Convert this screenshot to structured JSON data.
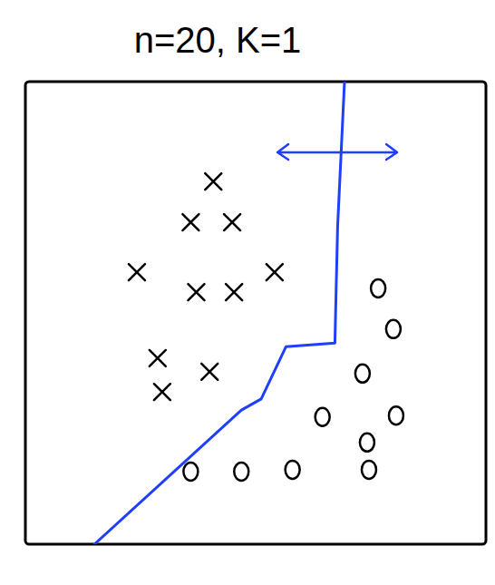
{
  "chart_data": {
    "type": "scatter",
    "title": "n=20, K=1",
    "xlim": [
      0,
      10
    ],
    "ylim": [
      0,
      10
    ],
    "tick_labels": false,
    "grid": false,
    "series": [
      {
        "type": "scatter",
        "marker": "x",
        "color": "#000000",
        "x": [
          4.08,
          3.59,
          4.49,
          2.42,
          3.71,
          4.53,
          5.41,
          2.87,
          4.0,
          2.97
        ],
        "values": [
          7.84,
          6.96,
          6.96,
          5.88,
          5.45,
          5.45,
          5.88,
          4.02,
          3.73,
          3.29
        ]
      },
      {
        "type": "scatter",
        "marker": "o",
        "color": "#000000",
        "x": [
          7.66,
          7.99,
          7.32,
          6.45,
          8.05,
          7.42,
          7.46,
          3.59,
          4.69,
          5.8
        ],
        "values": [
          5.53,
          4.65,
          3.69,
          2.75,
          2.78,
          2.2,
          1.61,
          1.57,
          1.57,
          1.61
        ]
      },
      {
        "type": "line",
        "line_style": "solid",
        "color": "#1f3fff",
        "x": [
          6.93,
          6.78,
          6.72,
          5.66,
          5.12,
          4.69,
          1.5
        ],
        "values": [
          10,
          6.86,
          4.35,
          4.27,
          3.14,
          2.9,
          0
        ]
      }
    ]
  }
}
